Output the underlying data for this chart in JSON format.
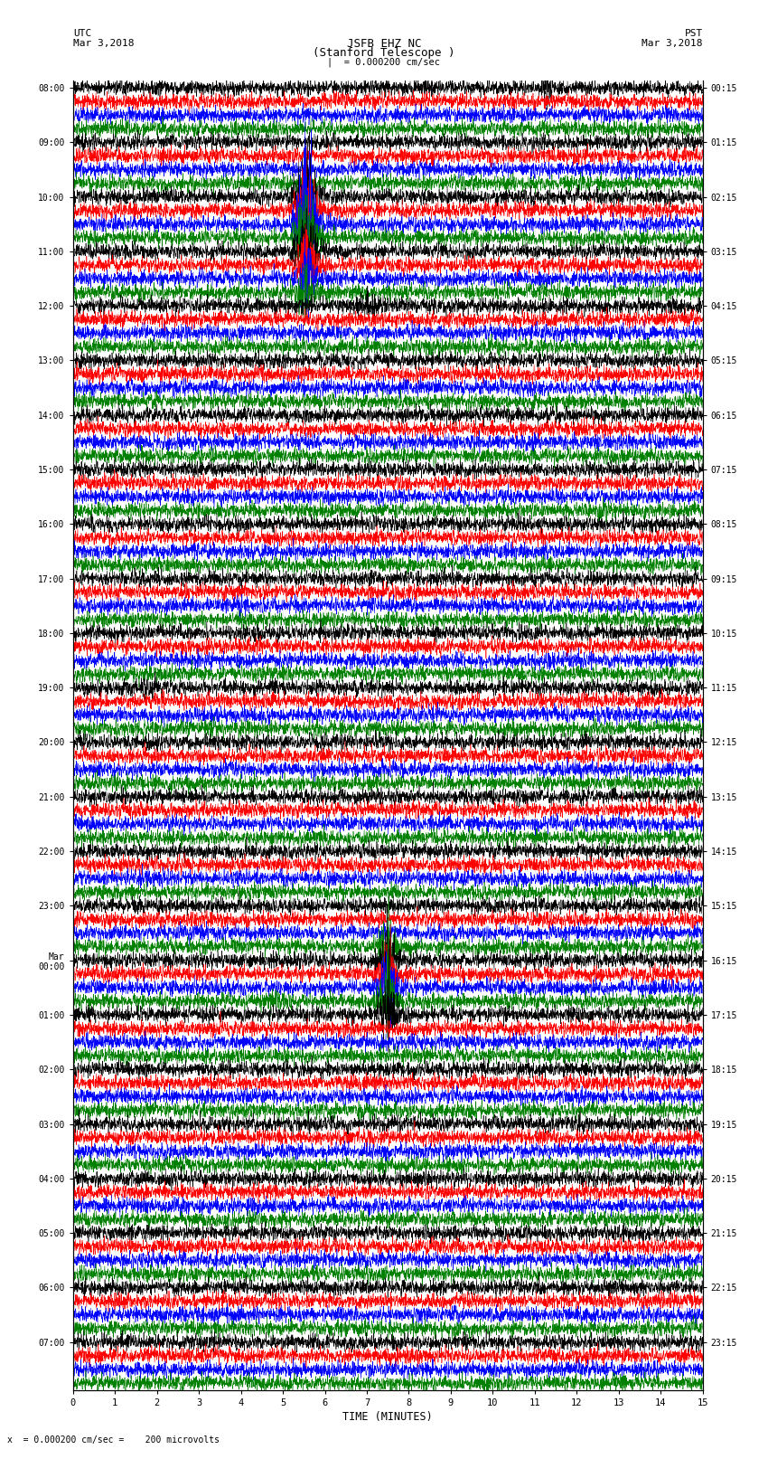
{
  "title_line1": "JSFB EHZ NC",
  "title_line2": "(Stanford Telescope )",
  "scale_label": "= 0.000200 cm/sec",
  "utc_label": "UTC",
  "utc_date": "Mar 3,2018",
  "pst_label": "PST",
  "pst_date": "Mar 3,2018",
  "bottom_label": "x  = 0.000200 cm/sec =    200 microvolts",
  "xlabel": "TIME (MINUTES)",
  "left_times_labeled": [
    "08:00",
    "09:00",
    "10:00",
    "11:00",
    "12:00",
    "13:00",
    "14:00",
    "15:00",
    "16:00",
    "17:00",
    "18:00",
    "19:00",
    "20:00",
    "21:00",
    "22:00",
    "23:00",
    "Mar\n00:00",
    "01:00",
    "02:00",
    "03:00",
    "04:00",
    "05:00",
    "06:00",
    "07:00"
  ],
  "right_times_labeled": [
    "00:15",
    "01:15",
    "02:15",
    "03:15",
    "04:15",
    "05:15",
    "06:15",
    "07:15",
    "08:15",
    "09:15",
    "10:15",
    "11:15",
    "12:15",
    "13:15",
    "14:15",
    "15:15",
    "16:15",
    "17:15",
    "18:15",
    "19:15",
    "20:15",
    "21:15",
    "22:15",
    "23:15"
  ],
  "colors": [
    "black",
    "red",
    "blue",
    "green"
  ],
  "n_rows": 96,
  "n_cols": 3000,
  "xmin": 0,
  "xmax": 15,
  "bg_color": "white",
  "fig_width": 8.5,
  "fig_height": 16.13,
  "dpi": 100,
  "amplitude": 0.42,
  "spike_rows": [
    8,
    9,
    10,
    11,
    12,
    13,
    14,
    15,
    63,
    64,
    65,
    66,
    67,
    68
  ],
  "spike_positions": [
    0.37,
    0.37,
    0.37,
    0.37,
    0.37,
    0.37,
    0.37,
    0.37,
    0.5,
    0.5,
    0.5,
    0.5,
    0.5,
    0.5
  ],
  "spike_amplitudes": [
    3.5,
    3.5,
    5.0,
    3.5,
    3.0,
    2.5,
    2.0,
    1.5,
    2.0,
    2.0,
    2.0,
    2.0,
    2.0,
    2.0
  ]
}
